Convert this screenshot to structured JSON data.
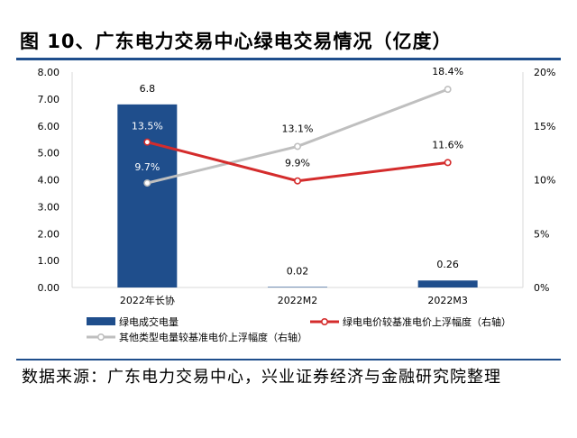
{
  "title": "图 10、广东电力交易中心绿电交易情况（亿度）",
  "source": "数据来源：广东电力交易中心，兴业证券经济与金融研究院整理",
  "colors": {
    "bar": "#1f4e8c",
    "red_line": "#d42c2c",
    "gray_line": "#bfbfbf",
    "axis": "#d9d9d9",
    "rule": "#1f4e8c"
  },
  "chart_data": {
    "type": "bar+line",
    "categories": [
      "2022年长协",
      "2022M2",
      "2022M3"
    ],
    "left_axis": {
      "min": 0,
      "max": 8,
      "step": 1,
      "tick_labels": [
        "0.00",
        "1.00",
        "2.00",
        "3.00",
        "4.00",
        "5.00",
        "6.00",
        "7.00",
        "8.00"
      ]
    },
    "right_axis": {
      "min": 0,
      "max": 20,
      "step": 5,
      "unit": "%",
      "tick_labels": [
        "0%",
        "5%",
        "10%",
        "15%",
        "20%"
      ]
    },
    "series": [
      {
        "name": "绿电成交电量",
        "kind": "bar",
        "axis": "left",
        "values": [
          6.8,
          0.02,
          0.26
        ],
        "data_labels": [
          "6.8",
          "0.02",
          "0.26"
        ]
      },
      {
        "name": "绿电电价较基准电价上浮幅度（右轴）",
        "kind": "line",
        "axis": "right",
        "values": [
          13.5,
          9.9,
          11.6
        ],
        "data_labels": [
          "13.5%",
          "9.9%",
          "11.6%"
        ]
      },
      {
        "name": "其他类型电量较基准电价上浮幅度（右轴）",
        "kind": "line",
        "axis": "right",
        "values": [
          9.7,
          13.1,
          18.4
        ],
        "data_labels": [
          "9.7%",
          "13.1%",
          "18.4%"
        ]
      }
    ],
    "legend": "bottom"
  }
}
